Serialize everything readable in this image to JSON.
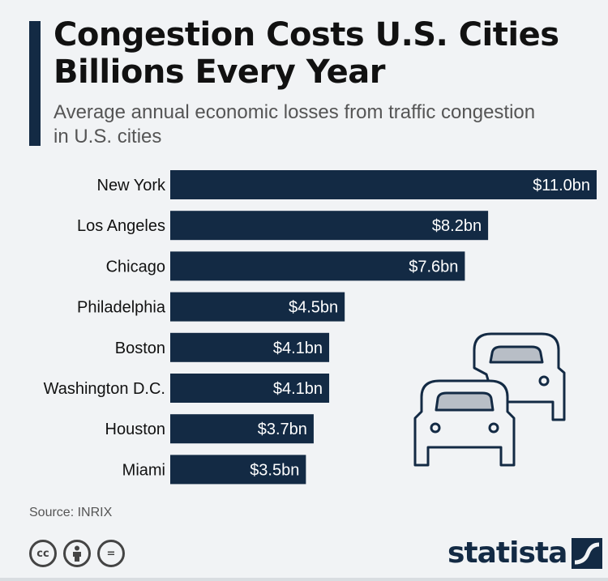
{
  "header": {
    "title_line1": "Congestion Costs U.S. Cities",
    "title_line2": "Billions Every Year",
    "subtitle_line1": "Average annual economic losses from traffic congestion",
    "subtitle_line2": "in U.S. cities"
  },
  "footer": {
    "source": "Source: INRIX",
    "brand": "statista",
    "cc_icons": [
      "cc-icon",
      "attribution-icon",
      "no-derivatives-icon"
    ],
    "cc_glyphs": [
      "cc",
      "",
      "="
    ]
  },
  "illustration": {
    "icons": [
      "car-front-icon",
      "car-front-icon"
    ]
  },
  "colors": {
    "bar": "#132a44",
    "accent": "#132a44",
    "text": "#111111"
  },
  "chart_data": {
    "type": "bar",
    "orientation": "horizontal",
    "categories": [
      "New York",
      "Los Angeles",
      "Chicago",
      "Philadelphia",
      "Boston",
      "Washington D.C.",
      "Houston",
      "Miami"
    ],
    "values": [
      11.0,
      8.2,
      7.6,
      4.5,
      4.1,
      4.1,
      3.7,
      3.5
    ],
    "data_labels": [
      "$11.0bn",
      "$8.2bn",
      "$7.6bn",
      "$4.5bn",
      "$4.1bn",
      "$4.1bn",
      "$3.7bn",
      "$3.5bn"
    ],
    "title": "Congestion Costs U.S. Cities Billions Every Year",
    "xlabel": "",
    "ylabel": "",
    "xlim": [
      0,
      11.0
    ],
    "grid": false,
    "legend": "none"
  }
}
